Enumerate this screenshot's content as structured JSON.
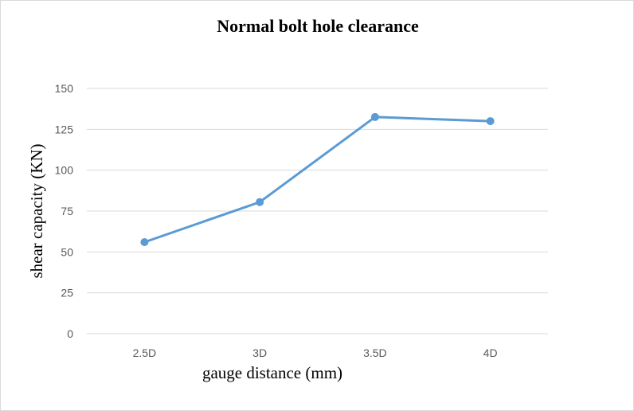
{
  "chart_data": {
    "type": "line",
    "title": "Normal bolt hole clearance",
    "xlabel": "gauge distance (mm)",
    "ylabel": "shear capacity (KN)",
    "categories": [
      "2.5D",
      "3D",
      "3.5D",
      "4D"
    ],
    "series": [
      {
        "values": [
          56,
          80.5,
          132.5,
          130
        ]
      }
    ],
    "ylim": [
      0,
      150
    ],
    "yticks": [
      0,
      25,
      50,
      75,
      100,
      125,
      150
    ],
    "grid": true,
    "legend": "none",
    "colors": {
      "series": "#5b9bd5",
      "grid": "#d9d9d9",
      "ticks": "#595959"
    }
  }
}
